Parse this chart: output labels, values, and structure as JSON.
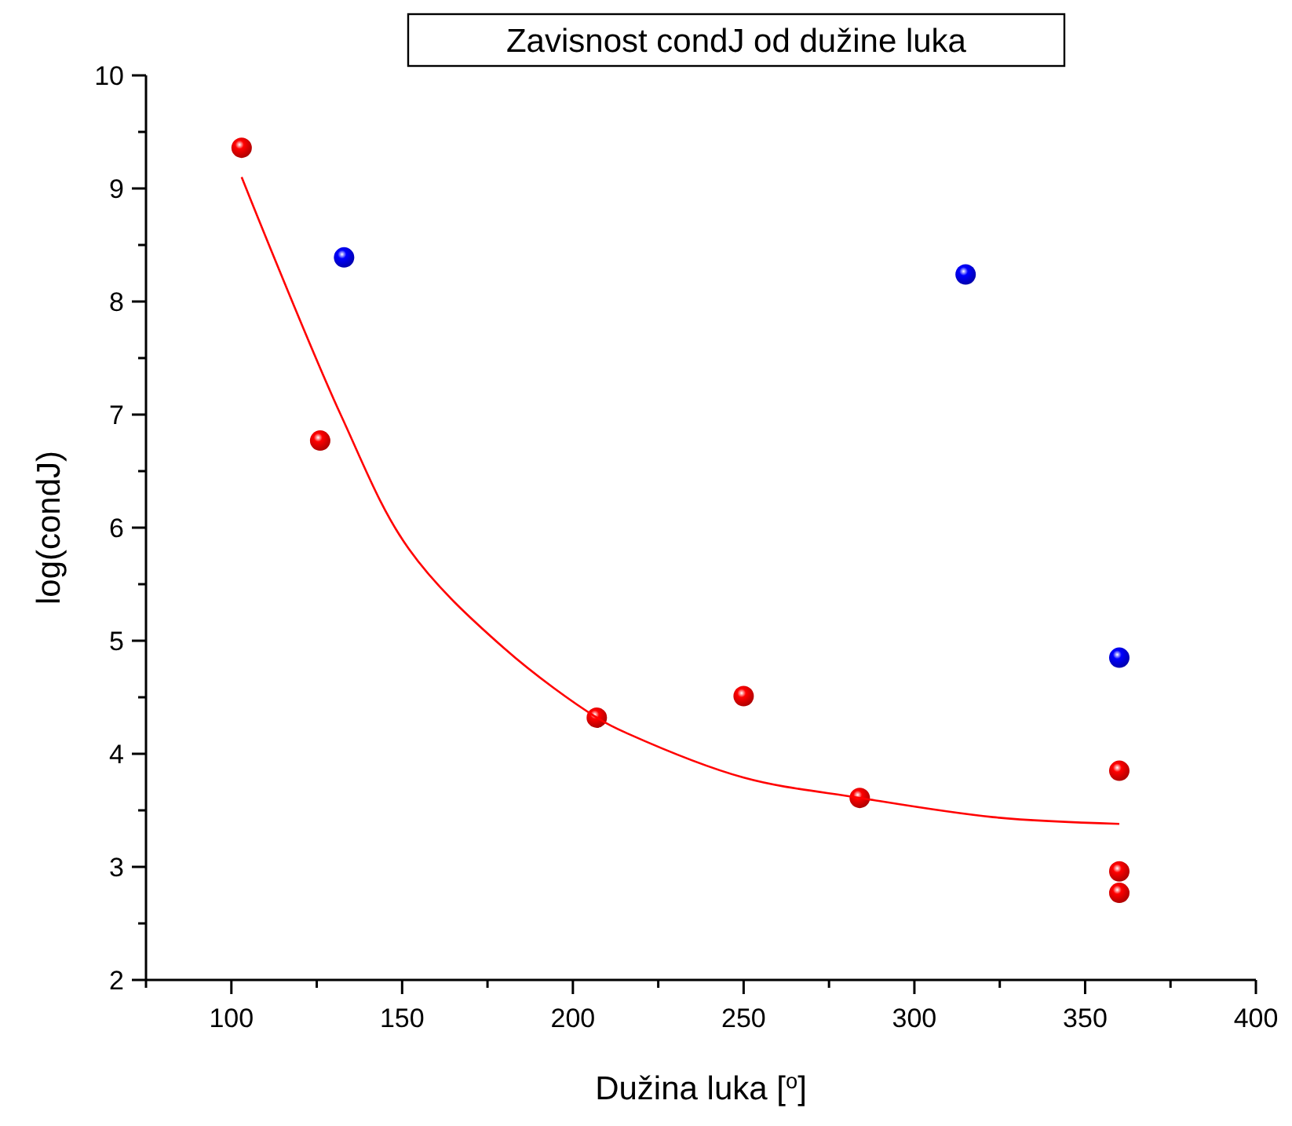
{
  "chart_data": {
    "type": "scatter",
    "title": "Zavisnost condJ od dužine luka",
    "xlabel": "Dužina luka [$^{o}$]",
    "ylabel": "log(condJ)",
    "xlim": [
      75,
      400
    ],
    "xticks": [
      100,
      150,
      200,
      250,
      300,
      350,
      400
    ],
    "ylim": [
      2,
      10
    ],
    "yticks": [
      2,
      3,
      4,
      5,
      6,
      7,
      8,
      9,
      10
    ],
    "marker": "circle",
    "grid": false,
    "series": [
      {
        "color": "#ff0000",
        "x": [
          103,
          126,
          207,
          250,
          284,
          360,
          360,
          360
        ],
        "values": [
          9.36,
          6.77,
          4.32,
          4.51,
          3.61,
          3.85,
          2.96,
          2.77
        ]
      },
      {
        "color": "#0000ff",
        "x": [
          133,
          315,
          360
        ],
        "values": [
          8.39,
          8.24,
          4.85
        ]
      },
      {
        "type": "line",
        "marker": "none",
        "color": "#ff0000",
        "x": [
          103,
          132,
          152,
          180,
          207,
          216,
          250,
          284,
          323,
          360
        ],
        "values": [
          9.1,
          7.0,
          5.81,
          4.93,
          4.32,
          4.18,
          3.79,
          3.61,
          3.44,
          3.38
        ]
      }
    ]
  }
}
